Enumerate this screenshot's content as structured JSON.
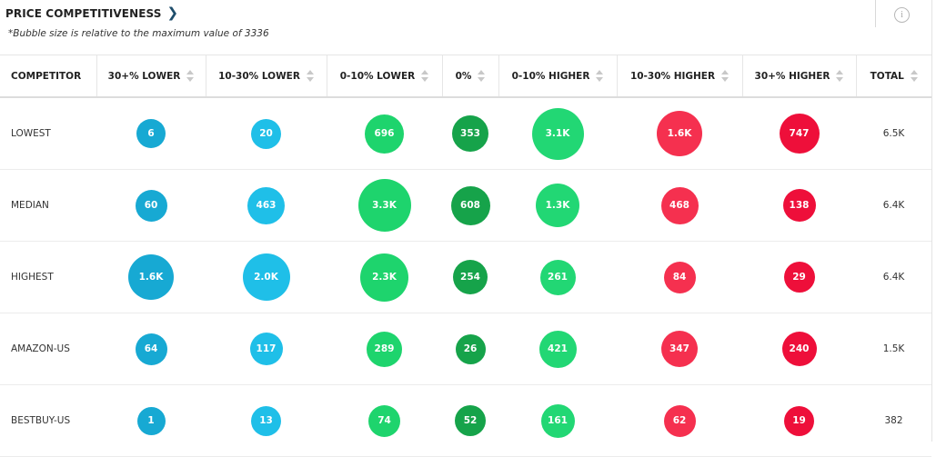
{
  "header": {
    "title": "PRICE COMPETITIVENESS",
    "chevron_icon": "chevron-right-icon",
    "note": "*Bubble size is relative to the maximum value of 3336",
    "info_icon": "info-icon",
    "info_glyph": "i"
  },
  "colors": {
    "lower_strong": "#17a9d3",
    "lower_mid": "#1fbfe8",
    "lower_light": "#1ed46d",
    "zero": "#16a34a",
    "higher_light": "#22d774",
    "higher_mid": "#f5304f",
    "higher_strong": "#ee0f3a"
  },
  "max_value": 3336,
  "table": {
    "columns": [
      "COMPETITOR",
      "30+% LOWER",
      "10-30% LOWER",
      "0-10% LOWER",
      "0%",
      "0-10% HIGHER",
      "10-30% HIGHER",
      "30+% HIGHER",
      "TOTAL"
    ],
    "rows": [
      {
        "name": "LOWEST",
        "cells": [
          {
            "label": "6",
            "value": 6
          },
          {
            "label": "20",
            "value": 20
          },
          {
            "label": "696",
            "value": 696
          },
          {
            "label": "353",
            "value": 353
          },
          {
            "label": "3.1K",
            "value": 3100
          },
          {
            "label": "1.6K",
            "value": 1600
          },
          {
            "label": "747",
            "value": 747
          }
        ],
        "total": "6.5K"
      },
      {
        "name": "MEDIAN",
        "cells": [
          {
            "label": "60",
            "value": 60
          },
          {
            "label": "463",
            "value": 463
          },
          {
            "label": "3.3K",
            "value": 3336
          },
          {
            "label": "608",
            "value": 608
          },
          {
            "label": "1.3K",
            "value": 1300
          },
          {
            "label": "468",
            "value": 468
          },
          {
            "label": "138",
            "value": 138
          }
        ],
        "total": "6.4K"
      },
      {
        "name": "HIGHEST",
        "cells": [
          {
            "label": "1.6K",
            "value": 1600
          },
          {
            "label": "2.0K",
            "value": 2000
          },
          {
            "label": "2.3K",
            "value": 2300
          },
          {
            "label": "254",
            "value": 254
          },
          {
            "label": "261",
            "value": 261
          },
          {
            "label": "84",
            "value": 84
          },
          {
            "label": "29",
            "value": 29
          }
        ],
        "total": "6.4K"
      },
      {
        "name": "AMAZON-US",
        "cells": [
          {
            "label": "64",
            "value": 64
          },
          {
            "label": "117",
            "value": 117
          },
          {
            "label": "289",
            "value": 289
          },
          {
            "label": "26",
            "value": 26
          },
          {
            "label": "421",
            "value": 421
          },
          {
            "label": "347",
            "value": 347
          },
          {
            "label": "240",
            "value": 240
          }
        ],
        "total": "1.5K"
      },
      {
        "name": "BESTBUY-US",
        "cells": [
          {
            "label": "1",
            "value": 1
          },
          {
            "label": "13",
            "value": 13
          },
          {
            "label": "74",
            "value": 74
          },
          {
            "label": "52",
            "value": 52
          },
          {
            "label": "161",
            "value": 161
          },
          {
            "label": "62",
            "value": 62
          },
          {
            "label": "19",
            "value": 19
          }
        ],
        "total": "382"
      }
    ]
  }
}
